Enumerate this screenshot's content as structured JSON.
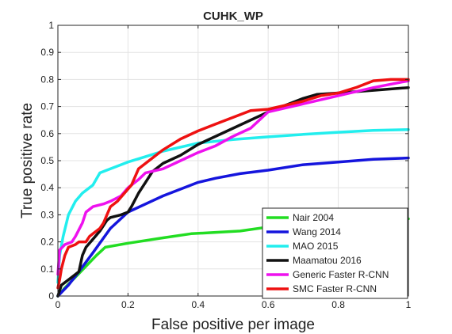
{
  "chart_data": {
    "type": "line",
    "title": "CUHK_WP",
    "xlabel": "False positive per image",
    "ylabel": "True positive rate",
    "xlim": [
      0,
      1
    ],
    "ylim": [
      0,
      1
    ],
    "xticks": [
      0,
      0.2,
      0.4,
      0.6,
      0.8,
      1
    ],
    "xtick_labels": [
      "0",
      "0.2",
      "0.4",
      "0.6",
      "0.8",
      "1"
    ],
    "yticks": [
      0,
      0.1,
      0.2,
      0.3,
      0.4,
      0.5,
      0.6,
      0.7,
      0.8,
      0.9,
      1
    ],
    "ytick_labels": [
      "0",
      "0.1",
      "0.2",
      "0.3",
      "0.4",
      "0.5",
      "0.6",
      "0.7",
      "0.8",
      "0.9",
      "1"
    ],
    "grid": true,
    "legend_position": "bottom-right",
    "series": [
      {
        "name": "Nair 2004",
        "color": "#22dd22",
        "points": [
          [
            0,
            0
          ],
          [
            0.02,
            0.03
          ],
          [
            0.05,
            0.07
          ],
          [
            0.08,
            0.11
          ],
          [
            0.11,
            0.15
          ],
          [
            0.135,
            0.18
          ],
          [
            0.2,
            0.195
          ],
          [
            0.3,
            0.215
          ],
          [
            0.38,
            0.23
          ],
          [
            0.45,
            0.235
          ],
          [
            0.52,
            0.24
          ],
          [
            0.6,
            0.255
          ],
          [
            0.7,
            0.27
          ],
          [
            0.8,
            0.275
          ],
          [
            0.9,
            0.28
          ],
          [
            1.0,
            0.285
          ]
        ]
      },
      {
        "name": "Wang 2014",
        "color": "#1515dd",
        "points": [
          [
            0,
            0
          ],
          [
            0.03,
            0.04
          ],
          [
            0.06,
            0.09
          ],
          [
            0.1,
            0.16
          ],
          [
            0.15,
            0.25
          ],
          [
            0.2,
            0.31
          ],
          [
            0.3,
            0.37
          ],
          [
            0.4,
            0.42
          ],
          [
            0.45,
            0.435
          ],
          [
            0.52,
            0.452
          ],
          [
            0.6,
            0.465
          ],
          [
            0.7,
            0.485
          ],
          [
            0.8,
            0.495
          ],
          [
            0.9,
            0.505
          ],
          [
            1.0,
            0.51
          ]
        ]
      },
      {
        "name": "MAO 2015",
        "color": "#22eeee",
        "points": [
          [
            0,
            0.05
          ],
          [
            0.005,
            0.15
          ],
          [
            0.015,
            0.22
          ],
          [
            0.03,
            0.3
          ],
          [
            0.05,
            0.35
          ],
          [
            0.07,
            0.38
          ],
          [
            0.1,
            0.41
          ],
          [
            0.12,
            0.455
          ],
          [
            0.15,
            0.47
          ],
          [
            0.2,
            0.495
          ],
          [
            0.25,
            0.515
          ],
          [
            0.3,
            0.535
          ],
          [
            0.4,
            0.565
          ],
          [
            0.5,
            0.578
          ],
          [
            0.6,
            0.588
          ],
          [
            0.7,
            0.597
          ],
          [
            0.8,
            0.605
          ],
          [
            0.9,
            0.612
          ],
          [
            1.0,
            0.615
          ]
        ]
      },
      {
        "name": "Maamatou 2016",
        "color": "#111111",
        "points": [
          [
            0,
            0
          ],
          [
            0.01,
            0.04
          ],
          [
            0.04,
            0.07
          ],
          [
            0.06,
            0.09
          ],
          [
            0.07,
            0.15
          ],
          [
            0.08,
            0.18
          ],
          [
            0.1,
            0.21
          ],
          [
            0.12,
            0.24
          ],
          [
            0.14,
            0.28
          ],
          [
            0.15,
            0.29
          ],
          [
            0.18,
            0.3
          ],
          [
            0.2,
            0.31
          ],
          [
            0.21,
            0.33
          ],
          [
            0.23,
            0.38
          ],
          [
            0.24,
            0.4
          ],
          [
            0.25,
            0.42
          ],
          [
            0.27,
            0.46
          ],
          [
            0.3,
            0.49
          ],
          [
            0.35,
            0.52
          ],
          [
            0.4,
            0.56
          ],
          [
            0.5,
            0.62
          ],
          [
            0.6,
            0.68
          ],
          [
            0.7,
            0.73
          ],
          [
            0.74,
            0.745
          ],
          [
            0.8,
            0.75
          ],
          [
            0.9,
            0.76
          ],
          [
            1.0,
            0.77
          ]
        ]
      },
      {
        "name": "Generic Faster R-CNN",
        "color": "#ee11ee",
        "points": [
          [
            0,
            0.08
          ],
          [
            0.005,
            0.17
          ],
          [
            0.02,
            0.19
          ],
          [
            0.04,
            0.2
          ],
          [
            0.05,
            0.22
          ],
          [
            0.07,
            0.27
          ],
          [
            0.08,
            0.31
          ],
          [
            0.1,
            0.33
          ],
          [
            0.13,
            0.34
          ],
          [
            0.15,
            0.35
          ],
          [
            0.18,
            0.37
          ],
          [
            0.2,
            0.4
          ],
          [
            0.23,
            0.43
          ],
          [
            0.25,
            0.455
          ],
          [
            0.3,
            0.47
          ],
          [
            0.35,
            0.5
          ],
          [
            0.4,
            0.53
          ],
          [
            0.45,
            0.555
          ],
          [
            0.5,
            0.59
          ],
          [
            0.55,
            0.62
          ],
          [
            0.6,
            0.68
          ],
          [
            0.7,
            0.71
          ],
          [
            0.8,
            0.74
          ],
          [
            0.9,
            0.77
          ],
          [
            1.0,
            0.795
          ]
        ]
      },
      {
        "name": "SMC Faster R-CNN",
        "color": "#ee1111",
        "points": [
          [
            0,
            0.03
          ],
          [
            0.005,
            0.06
          ],
          [
            0.01,
            0.1
          ],
          [
            0.02,
            0.15
          ],
          [
            0.03,
            0.18
          ],
          [
            0.05,
            0.19
          ],
          [
            0.06,
            0.2
          ],
          [
            0.08,
            0.2
          ],
          [
            0.09,
            0.22
          ],
          [
            0.1,
            0.23
          ],
          [
            0.12,
            0.25
          ],
          [
            0.13,
            0.27
          ],
          [
            0.15,
            0.33
          ],
          [
            0.17,
            0.35
          ],
          [
            0.19,
            0.38
          ],
          [
            0.21,
            0.41
          ],
          [
            0.23,
            0.47
          ],
          [
            0.26,
            0.5
          ],
          [
            0.3,
            0.54
          ],
          [
            0.35,
            0.58
          ],
          [
            0.4,
            0.61
          ],
          [
            0.45,
            0.635
          ],
          [
            0.5,
            0.66
          ],
          [
            0.55,
            0.685
          ],
          [
            0.6,
            0.69
          ],
          [
            0.65,
            0.705
          ],
          [
            0.7,
            0.72
          ],
          [
            0.75,
            0.74
          ],
          [
            0.8,
            0.75
          ],
          [
            0.85,
            0.77
          ],
          [
            0.9,
            0.795
          ],
          [
            0.95,
            0.8
          ],
          [
            1.0,
            0.8
          ]
        ]
      }
    ]
  }
}
